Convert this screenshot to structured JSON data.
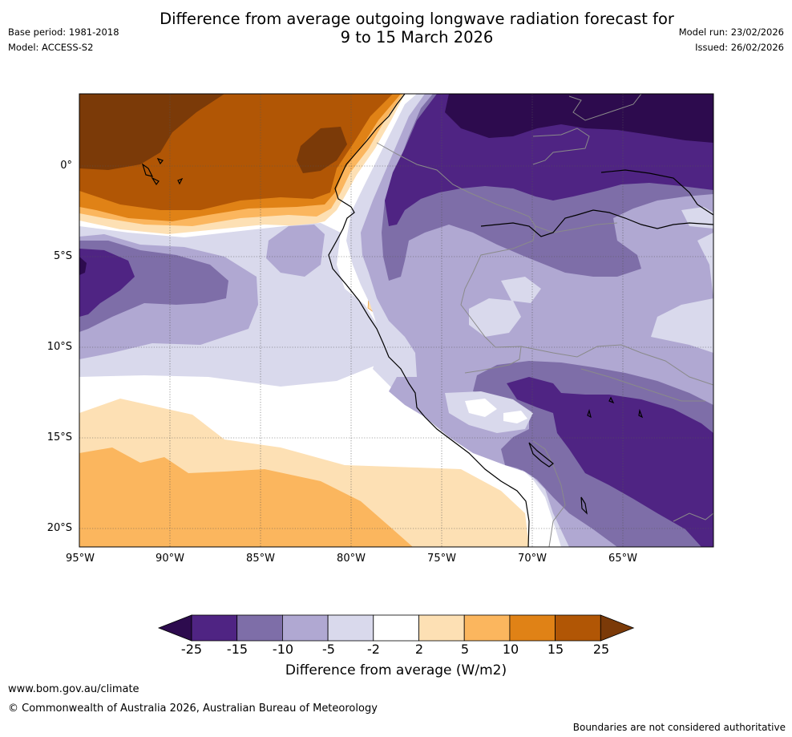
{
  "title": {
    "line1": "Difference from average outgoing longwave radiation forecast for",
    "line2": "9 to 15 March 2026"
  },
  "meta": {
    "base_period": "Base period: 1981-2018",
    "model": "Model: ACCESS-S2",
    "model_run": "Model run: 23/02/2026",
    "issued": "Issued: 26/02/2026"
  },
  "map": {
    "lat_labels": [
      "0°",
      "5°S",
      "10°S",
      "15°S",
      "20°S"
    ],
    "lon_labels": [
      "95°W",
      "90°W",
      "85°W",
      "80°W",
      "75°W",
      "70°W",
      "65°W"
    ]
  },
  "colorbar": {
    "ticks": [
      "-25",
      "-15",
      "-10",
      "-5",
      "-2",
      "2",
      "5",
      "10",
      "15",
      "25"
    ],
    "colors": [
      "#2d0b4e",
      "#4f2483",
      "#7e6ea8",
      "#b0a8d2",
      "#d9d9ec",
      "#ffffff",
      "#fde0b4",
      "#fbb65e",
      "#e08216",
      "#b15605",
      "#7b3a08"
    ],
    "label": "Difference from average (W/m2)"
  },
  "footer": {
    "url": "www.bom.gov.au/climate",
    "copyright": "© Commonwealth of Australia 2026, Australian Bureau of Meteorology",
    "disclaimer": "Boundaries are not considered authoritative"
  }
}
